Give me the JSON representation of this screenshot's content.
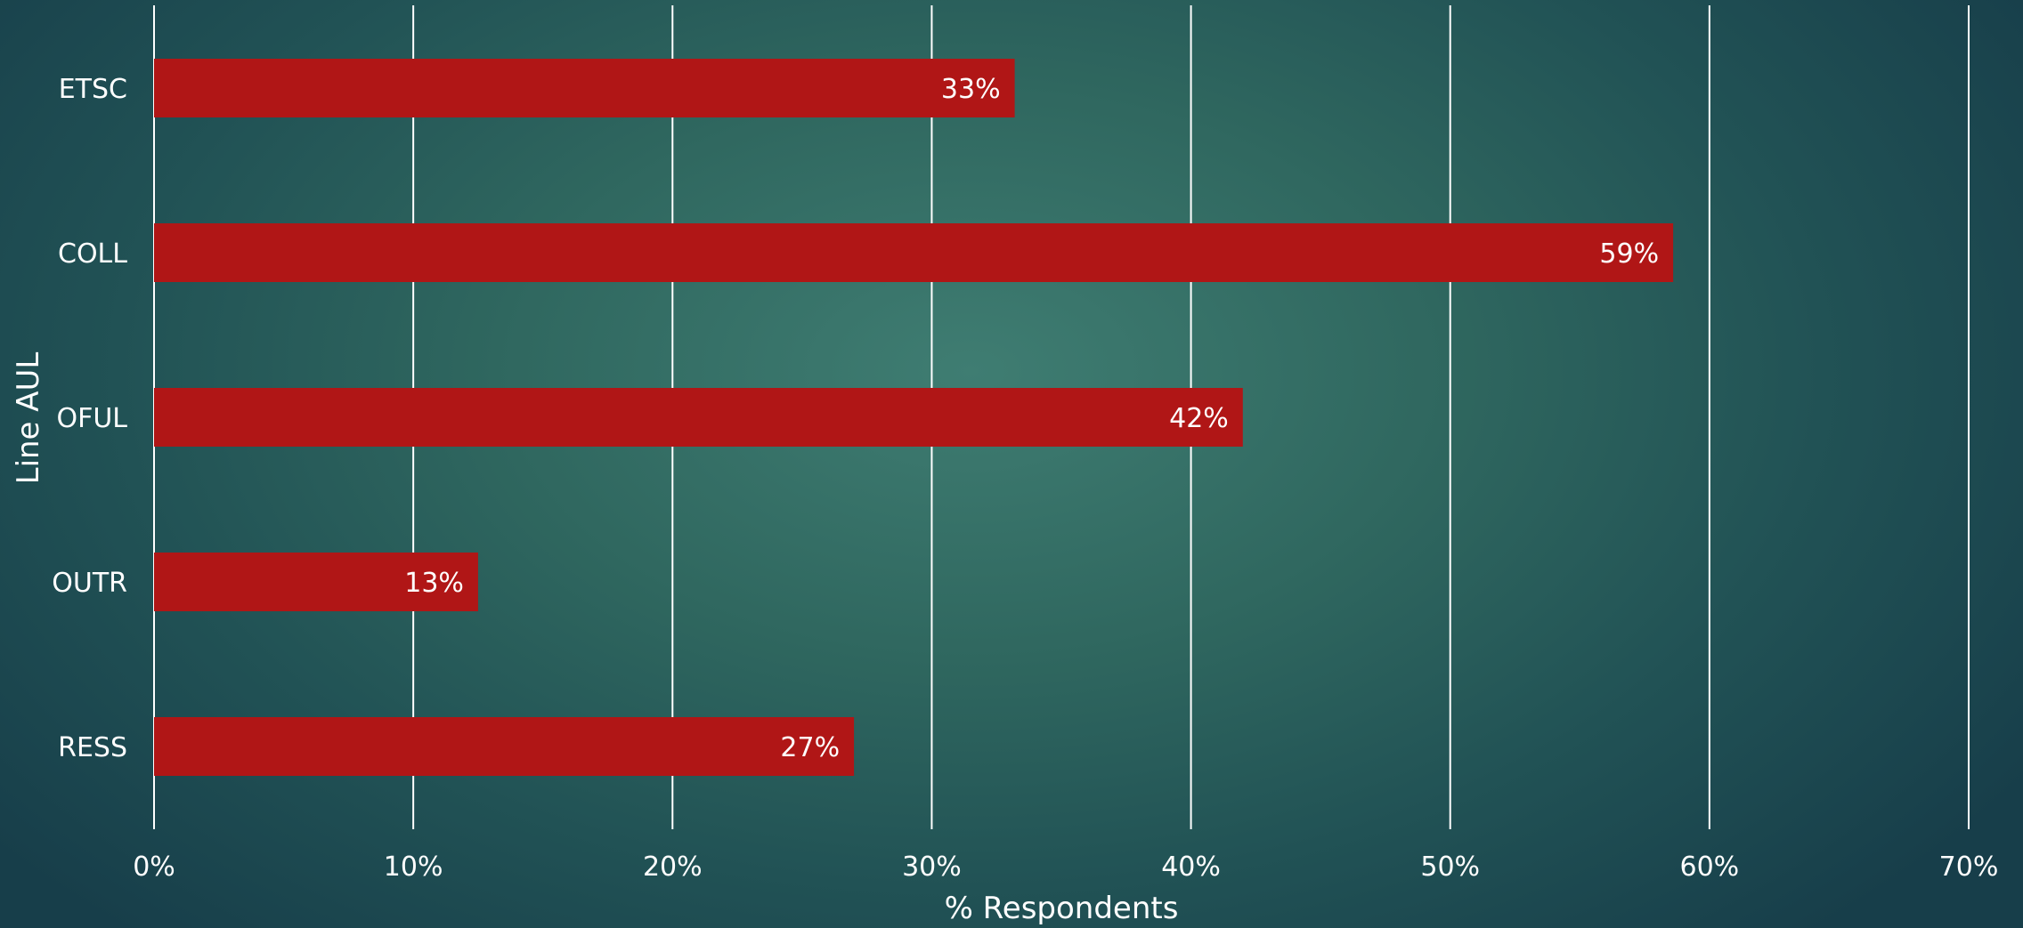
{
  "chart_data": {
    "type": "bar",
    "orientation": "horizontal",
    "title": "",
    "xlabel": "% Respondents",
    "ylabel": "Line AUL",
    "categories": [
      "ETSC",
      "COLL",
      "OFUL",
      "OUTR",
      "RESS"
    ],
    "values": [
      33.2,
      58.6,
      42.0,
      12.5,
      27.0
    ],
    "data_labels": [
      "33%",
      "59%",
      "42%",
      "13%",
      "27%"
    ],
    "xlim": [
      0,
      70
    ],
    "x_ticks": [
      0,
      10,
      20,
      30,
      40,
      50,
      60,
      70
    ],
    "x_tick_labels": [
      "0%",
      "10%",
      "20%",
      "30%",
      "40%",
      "50%",
      "60%",
      "70%"
    ],
    "grid": "vertical",
    "legend": "none",
    "colors": {
      "bar": "#b01616",
      "text": "#ffffff",
      "grid": "#ffffff"
    }
  }
}
